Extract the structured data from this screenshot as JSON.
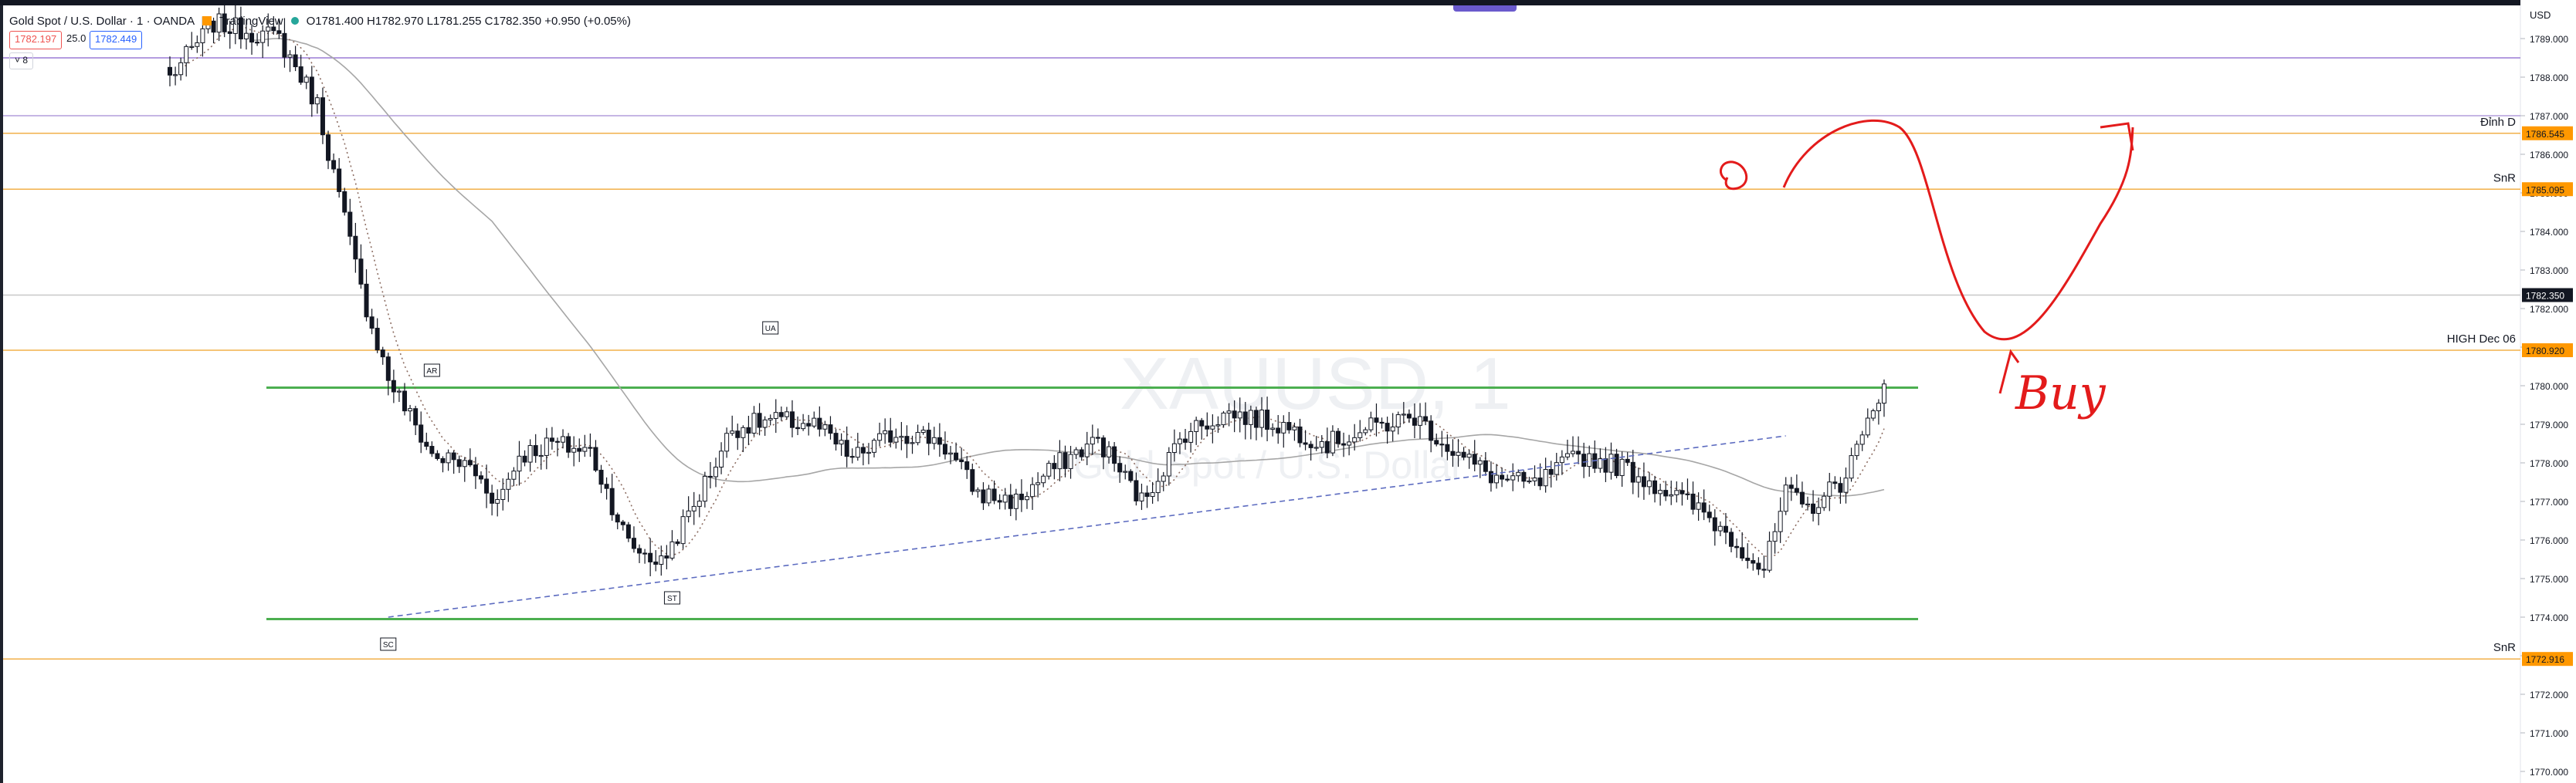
{
  "header": {
    "symbol_title": "Gold Spot / U.S. Dollar · 1 · OANDA",
    "platform": "TradingView",
    "ohlc": "O1781.400  H1782.970  L1781.255  C1782.350  +0.950 (+0.05%)",
    "sell_price": "1782.197",
    "spread": "25.0",
    "buy_price": "1782.449",
    "collapse_label": "˅ 8",
    "currency": "USD"
  },
  "watermark": {
    "symbol": "XAUUSD, 1",
    "name": "Gold Spot / U.S. Dollar"
  },
  "chart_data": {
    "type": "candlestick",
    "title": "Gold Spot / U.S. Dollar · 1 · OANDA",
    "y_ticks": [
      1770,
      1771,
      1772,
      1773,
      1774,
      1775,
      1776,
      1777,
      1778,
      1779,
      1780,
      1781,
      1782,
      1783,
      1784,
      1785,
      1786,
      1787,
      1788,
      1789
    ],
    "ylim": [
      1769.8,
      1789.5
    ],
    "bars": 315,
    "control_points": [
      [
        0,
        1788.0
      ],
      [
        8,
        1789.4
      ],
      [
        20,
        1789.0
      ],
      [
        27,
        1787.3
      ],
      [
        35,
        1782.5
      ],
      [
        40,
        1780.2
      ],
      [
        48,
        1778.2
      ],
      [
        55,
        1777.9
      ],
      [
        60,
        1777.0
      ],
      [
        64,
        1778.2
      ],
      [
        70,
        1778.5
      ],
      [
        77,
        1778.3
      ],
      [
        84,
        1775.9
      ],
      [
        90,
        1775.4
      ],
      [
        96,
        1776.9
      ],
      [
        103,
        1778.9
      ],
      [
        110,
        1779.1
      ],
      [
        118,
        1779.0
      ],
      [
        125,
        1778.1
      ],
      [
        133,
        1778.8
      ],
      [
        141,
        1778.6
      ],
      [
        148,
        1777.2
      ],
      [
        155,
        1777.0
      ],
      [
        163,
        1778.0
      ],
      [
        170,
        1778.6
      ],
      [
        178,
        1777.0
      ],
      [
        186,
        1778.8
      ],
      [
        194,
        1779.3
      ],
      [
        203,
        1779.0
      ],
      [
        212,
        1778.5
      ],
      [
        220,
        1778.9
      ],
      [
        228,
        1779.2
      ],
      [
        236,
        1778.2
      ],
      [
        243,
        1777.6
      ],
      [
        250,
        1777.4
      ],
      [
        258,
        1778.2
      ],
      [
        266,
        1777.9
      ],
      [
        274,
        1777.3
      ],
      [
        281,
        1776.7
      ],
      [
        288,
        1775.8
      ],
      [
        292,
        1775.2
      ],
      [
        296,
        1777.2
      ],
      [
        300,
        1776.8
      ],
      [
        306,
        1777.5
      ],
      [
        310,
        1778.6
      ],
      [
        315,
        1780.6
      ]
    ],
    "price_lines": [
      {
        "price": 1788.5,
        "color": "#9c7cd6",
        "label": "",
        "label_text": ""
      },
      {
        "price": 1787.0,
        "color": "#b39ddb",
        "label": "",
        "label_text": ""
      },
      {
        "price": 1786.545,
        "color": "#f2b04a",
        "label": "1786.545",
        "label_text": "Đỉnh D"
      },
      {
        "price": 1785.095,
        "color": "#f2b04a",
        "label": "1785.095",
        "label_text": "SnR"
      },
      {
        "price": 1782.35,
        "color": "#c8c8c8",
        "label": "1782.350",
        "label_text": ""
      },
      {
        "price": 1780.92,
        "color": "#f2b04a",
        "label": "1780.920",
        "label_text": "HIGH Dec 06"
      },
      {
        "price": 1772.916,
        "color": "#f2b04a",
        "label": "1772.916",
        "label_text": "SnR"
      }
    ],
    "support_resistance": [
      {
        "price": 1779.95,
        "color": "#4caf50"
      },
      {
        "price": 1773.95,
        "color": "#4caf50"
      }
    ],
    "trendline": {
      "from": [
        40,
        1774.0
      ],
      "to": [
        296,
        1778.7
      ],
      "color": "#5c6bc0"
    },
    "event_labels": [
      {
        "text": "SC",
        "bar": 40,
        "price": 1773.3
      },
      {
        "text": "AR",
        "bar": 48,
        "price": 1780.4
      },
      {
        "text": "ST",
        "bar": 92,
        "price": 1774.5
      },
      {
        "text": "UA",
        "bar": 110,
        "price": 1781.5
      }
    ],
    "annotation_text": "Buy",
    "grid": false
  }
}
